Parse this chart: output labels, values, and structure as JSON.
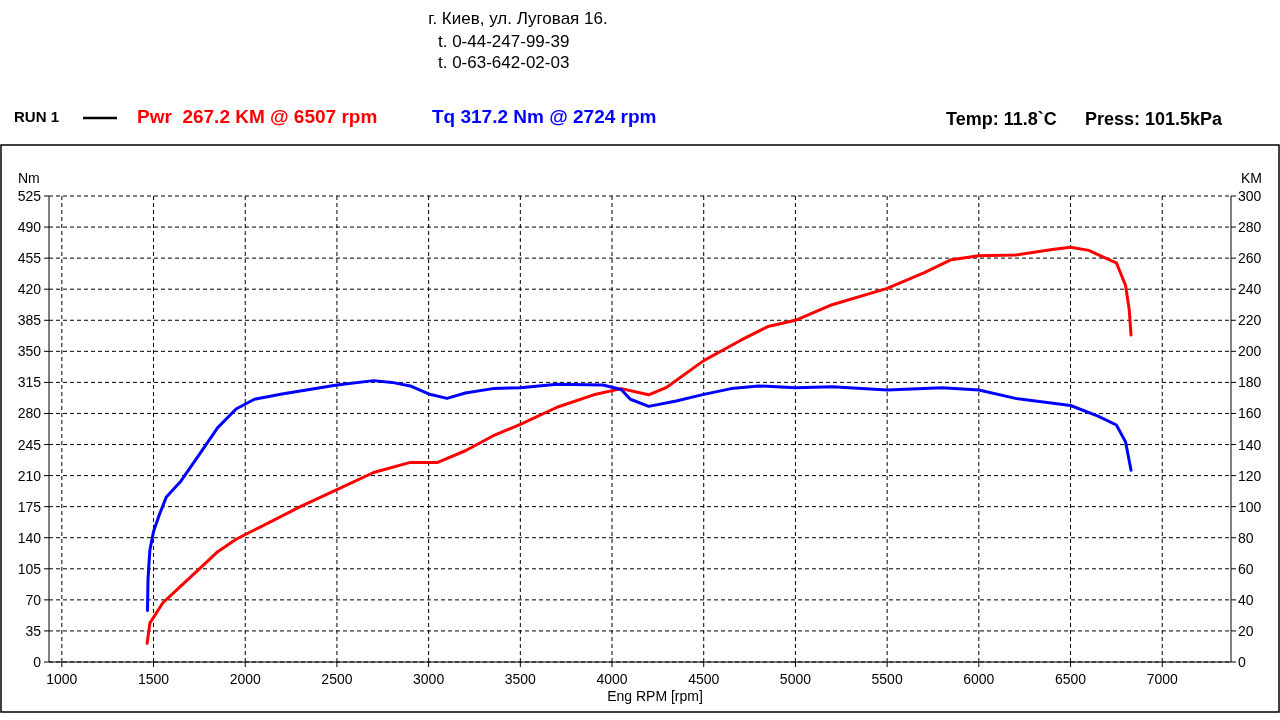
{
  "chart_data": {
    "type": "line",
    "xlabel": "Eng RPM [rpm]",
    "ylabel": "Nm",
    "y2label": "KM",
    "legend": "top",
    "grid": true,
    "line_style": "solid",
    "marker": "none",
    "annotations": [
      "г. Киев, ул. Луговая 16.",
      "t. 0-44-247-99-39",
      "t. 0-63-642-02-03",
      "RUN 1",
      "Temp: 11.8`C",
      "Press: 101.5kPa"
    ],
    "xlim": [
      930,
      7375
    ],
    "xticks": [
      1000,
      1500,
      2000,
      2500,
      3000,
      3500,
      4000,
      4500,
      5000,
      5500,
      6000,
      6500,
      7000
    ],
    "ylim": [
      0,
      525
    ],
    "yticks": [
      0,
      35,
      70,
      105,
      140,
      175,
      210,
      245,
      280,
      315,
      350,
      385,
      420,
      455,
      490,
      525
    ],
    "y2lim": [
      0,
      300
    ],
    "y2ticks": [
      0,
      20,
      40,
      60,
      80,
      100,
      120,
      140,
      160,
      180,
      200,
      220,
      240,
      260,
      280,
      300
    ],
    "series": [
      {
        "name": "Pwr  267.2 KM @ 6507 rpm",
        "color": "#ff0000",
        "axis": "y2",
        "x": [
          1465,
          1480,
          1550,
          1650,
          1750,
          1850,
          1950,
          2100,
          2300,
          2500,
          2700,
          2900,
          3050,
          3200,
          3350,
          3500,
          3700,
          3900,
          4050,
          4200,
          4300,
          4500,
          4700,
          4850,
          5000,
          5200,
          5500,
          5700,
          5850,
          6000,
          6200,
          6400,
          6500,
          6600,
          6700,
          6750,
          6800,
          6820,
          6830
        ],
        "values": [
          12,
          25,
          38,
          49,
          60,
          71,
          79,
          88,
          100,
          111,
          122,
          128.5,
          128.5,
          136,
          145.5,
          153,
          164,
          172,
          176,
          172,
          177,
          194,
          207,
          216,
          220,
          230,
          240.5,
          250.5,
          259,
          261.5,
          262,
          265.5,
          267,
          265,
          259.5,
          257,
          242.5,
          227,
          210.5
        ]
      },
      {
        "name": "Tq 317.2 Nm @ 2724 rpm",
        "color": "#0000ff",
        "axis": "y",
        "x": [
          1467,
          1470,
          1480,
          1500,
          1530,
          1570,
          1650,
          1750,
          1850,
          1950,
          2050,
          2200,
          2500,
          2700,
          2800,
          2900,
          3000,
          3100,
          3200,
          3350,
          3500,
          3700,
          3950,
          4050,
          4100,
          4200,
          4350,
          4500,
          4650,
          4800,
          5000,
          5200,
          5500,
          5800,
          6000,
          6200,
          6500,
          6650,
          6750,
          6800,
          6830
        ],
        "values": [
          58,
          94,
          126,
          147,
          165,
          186,
          204,
          234,
          264,
          285,
          296,
          302,
          312,
          317,
          315,
          311,
          302,
          297,
          303,
          308,
          309,
          313,
          312,
          307,
          296,
          288,
          294,
          301.5,
          308,
          311,
          309,
          310,
          306.5,
          309,
          306.5,
          297,
          289,
          277,
          267,
          248,
          216
        ]
      }
    ]
  }
}
